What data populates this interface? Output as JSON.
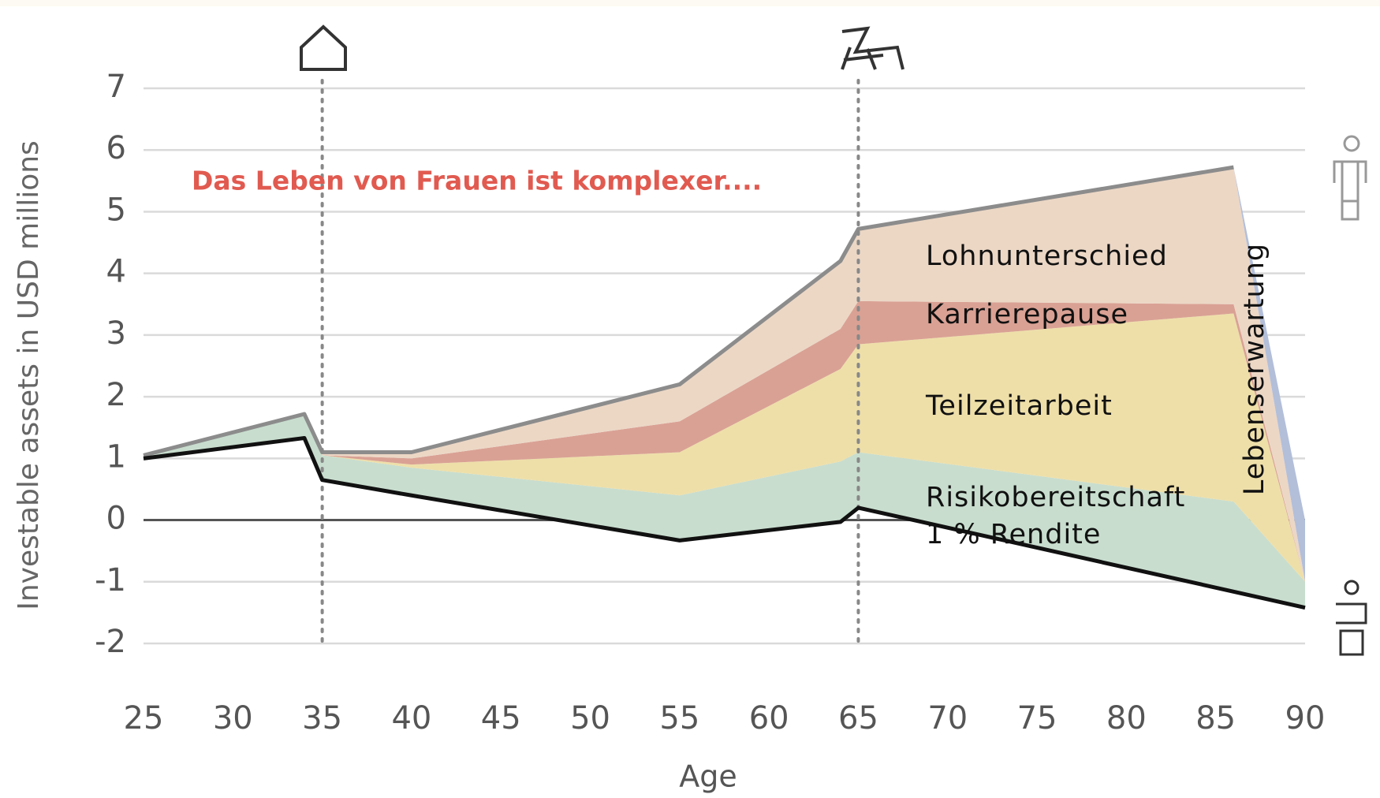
{
  "chart_data": {
    "type": "area",
    "stacked": true,
    "annotation": "Das Leben von Frauen ist komplexer....",
    "y_label": "Investable assets in USD millions",
    "x_label": "Age",
    "x": [
      25,
      34,
      35,
      40,
      55,
      64,
      65,
      86,
      90
    ],
    "xlim": [
      25,
      90
    ],
    "xticks": [
      25,
      30,
      35,
      40,
      45,
      50,
      55,
      60,
      65,
      70,
      75,
      80,
      85,
      90
    ],
    "ylim": [
      -2,
      7
    ],
    "yticks": [
      -2,
      -1,
      0,
      1,
      2,
      3,
      4,
      5,
      6,
      7
    ],
    "grid": true,
    "vlines": [
      35,
      65
    ],
    "base": {
      "name": "1 % Rendite",
      "color": "#111111",
      "values": [
        1.0,
        1.33,
        0.65,
        0.4,
        -0.33,
        -0.03,
        0.2,
        -1.16,
        -1.42
      ]
    },
    "series": [
      {
        "name": "Risikobereitschaft",
        "color": "#c8ddce",
        "values": [
          0.05,
          0.39,
          0.4,
          0.45,
          0.73,
          0.98,
          0.9,
          1.46,
          0.42
        ]
      },
      {
        "name": "Teilzeitarbeit",
        "color": "#eedfa9",
        "values": [
          0,
          0,
          0,
          0.05,
          0.7,
          1.5,
          1.75,
          3.05,
          0
        ]
      },
      {
        "name": "Karrierepause",
        "color": "#d9a194",
        "values": [
          0,
          0,
          0,
          0.1,
          0.5,
          0.65,
          0.7,
          0.15,
          0
        ]
      },
      {
        "name": "Lohnunterschied",
        "color": "#ecd7c5",
        "values": [
          0,
          0,
          0.05,
          0.1,
          0.6,
          1.1,
          1.17,
          2.22,
          0
        ]
      },
      {
        "name": "Lebenserwartung",
        "color": "#b3bfd9",
        "values": [
          0,
          0,
          0,
          0,
          0,
          0,
          0,
          0,
          1.0
        ]
      }
    ],
    "top_line_color": "#8c8c8c"
  }
}
